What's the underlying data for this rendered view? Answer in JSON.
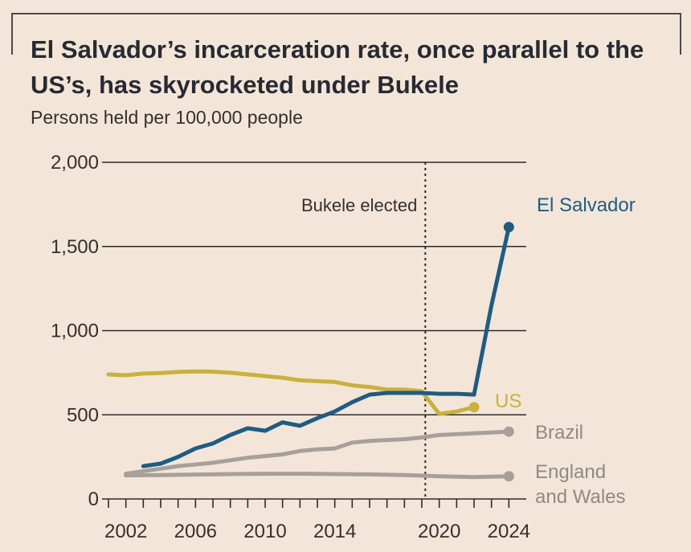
{
  "colors": {
    "background": "#f3e6d8",
    "el_salvador": "#1f5c82",
    "us": "#c8b13d",
    "brazil": "#a7a09a",
    "england_wales": "#a7a09a",
    "gridline": "#2b2b2b",
    "text": "#33302e"
  },
  "chart_data": {
    "type": "line",
    "title": "El Salvador’s incarceration rate, once parallel to the US’s, has skyrocketed under Bukele",
    "subtitle": "Persons held per 100,000 people",
    "xlabel": "",
    "ylabel": "",
    "xlim": [
      2001,
      2025
    ],
    "ylim": [
      0,
      2000
    ],
    "yticks": [
      {
        "value": 0,
        "label": "0"
      },
      {
        "value": 500,
        "label": "500"
      },
      {
        "value": 1000,
        "label": "1,000"
      },
      {
        "value": 1500,
        "label": "1,500"
      },
      {
        "value": 2000,
        "label": "2,000"
      }
    ],
    "xticks": [
      2001,
      2002,
      2003,
      2004,
      2005,
      2006,
      2007,
      2008,
      2009,
      2010,
      2011,
      2012,
      2013,
      2014,
      2015,
      2016,
      2017,
      2018,
      2019,
      2020,
      2021,
      2022,
      2023,
      2024
    ],
    "xtick_labels": [
      {
        "value": 2002,
        "label": "2002"
      },
      {
        "value": 2006,
        "label": "2006"
      },
      {
        "value": 2010,
        "label": "2010"
      },
      {
        "value": 2014,
        "label": "2014"
      },
      {
        "value": 2020,
        "label": "2020"
      },
      {
        "value": 2024,
        "label": "2024"
      }
    ],
    "grid": true,
    "annotations": [
      {
        "text": "Bukele elected",
        "x": 2019.2
      }
    ],
    "series": [
      {
        "name": "US",
        "label": "US",
        "color": "#c8b13d",
        "x": [
          2001,
          2002,
          2003,
          2004,
          2005,
          2006,
          2007,
          2008,
          2009,
          2010,
          2011,
          2012,
          2013,
          2014,
          2015,
          2016,
          2017,
          2018,
          2019,
          2020,
          2021,
          2022
        ],
        "values": [
          740,
          735,
          745,
          748,
          755,
          758,
          756,
          750,
          740,
          730,
          720,
          705,
          700,
          695,
          675,
          665,
          650,
          650,
          640,
          505,
          520,
          545
        ],
        "end_marker": true
      },
      {
        "name": "El Salvador",
        "label": "El Salvador",
        "color": "#1f5c82",
        "x": [
          2003,
          2004,
          2005,
          2006,
          2007,
          2008,
          2009,
          2010,
          2011,
          2012,
          2013,
          2014,
          2015,
          2016,
          2017,
          2018,
          2019,
          2020,
          2021,
          2022,
          2023,
          2024
        ],
        "values": [
          195,
          210,
          250,
          300,
          330,
          380,
          420,
          405,
          455,
          435,
          480,
          520,
          575,
          620,
          630,
          630,
          630,
          625,
          625,
          620,
          1150,
          1615
        ],
        "end_marker": true
      },
      {
        "name": "Brazil",
        "label": "Brazil",
        "color": "#a7a09a",
        "x": [
          2002,
          2003,
          2004,
          2005,
          2006,
          2007,
          2008,
          2009,
          2010,
          2011,
          2012,
          2013,
          2014,
          2015,
          2016,
          2017,
          2018,
          2019,
          2020,
          2021,
          2022,
          2023,
          2024
        ],
        "values": [
          150,
          165,
          180,
          195,
          205,
          215,
          230,
          245,
          255,
          265,
          285,
          295,
          300,
          335,
          345,
          350,
          355,
          365,
          380,
          385,
          390,
          395,
          400
        ],
        "end_marker": true
      },
      {
        "name": "England and Wales",
        "label_lines": [
          "England",
          "and Wales"
        ],
        "color": "#a7a09a",
        "x": [
          2002,
          2004,
          2006,
          2008,
          2010,
          2012,
          2014,
          2016,
          2018,
          2020,
          2022,
          2024
        ],
        "values": [
          140,
          142,
          145,
          148,
          150,
          150,
          148,
          146,
          142,
          135,
          130,
          135
        ],
        "end_marker": true
      }
    ]
  }
}
